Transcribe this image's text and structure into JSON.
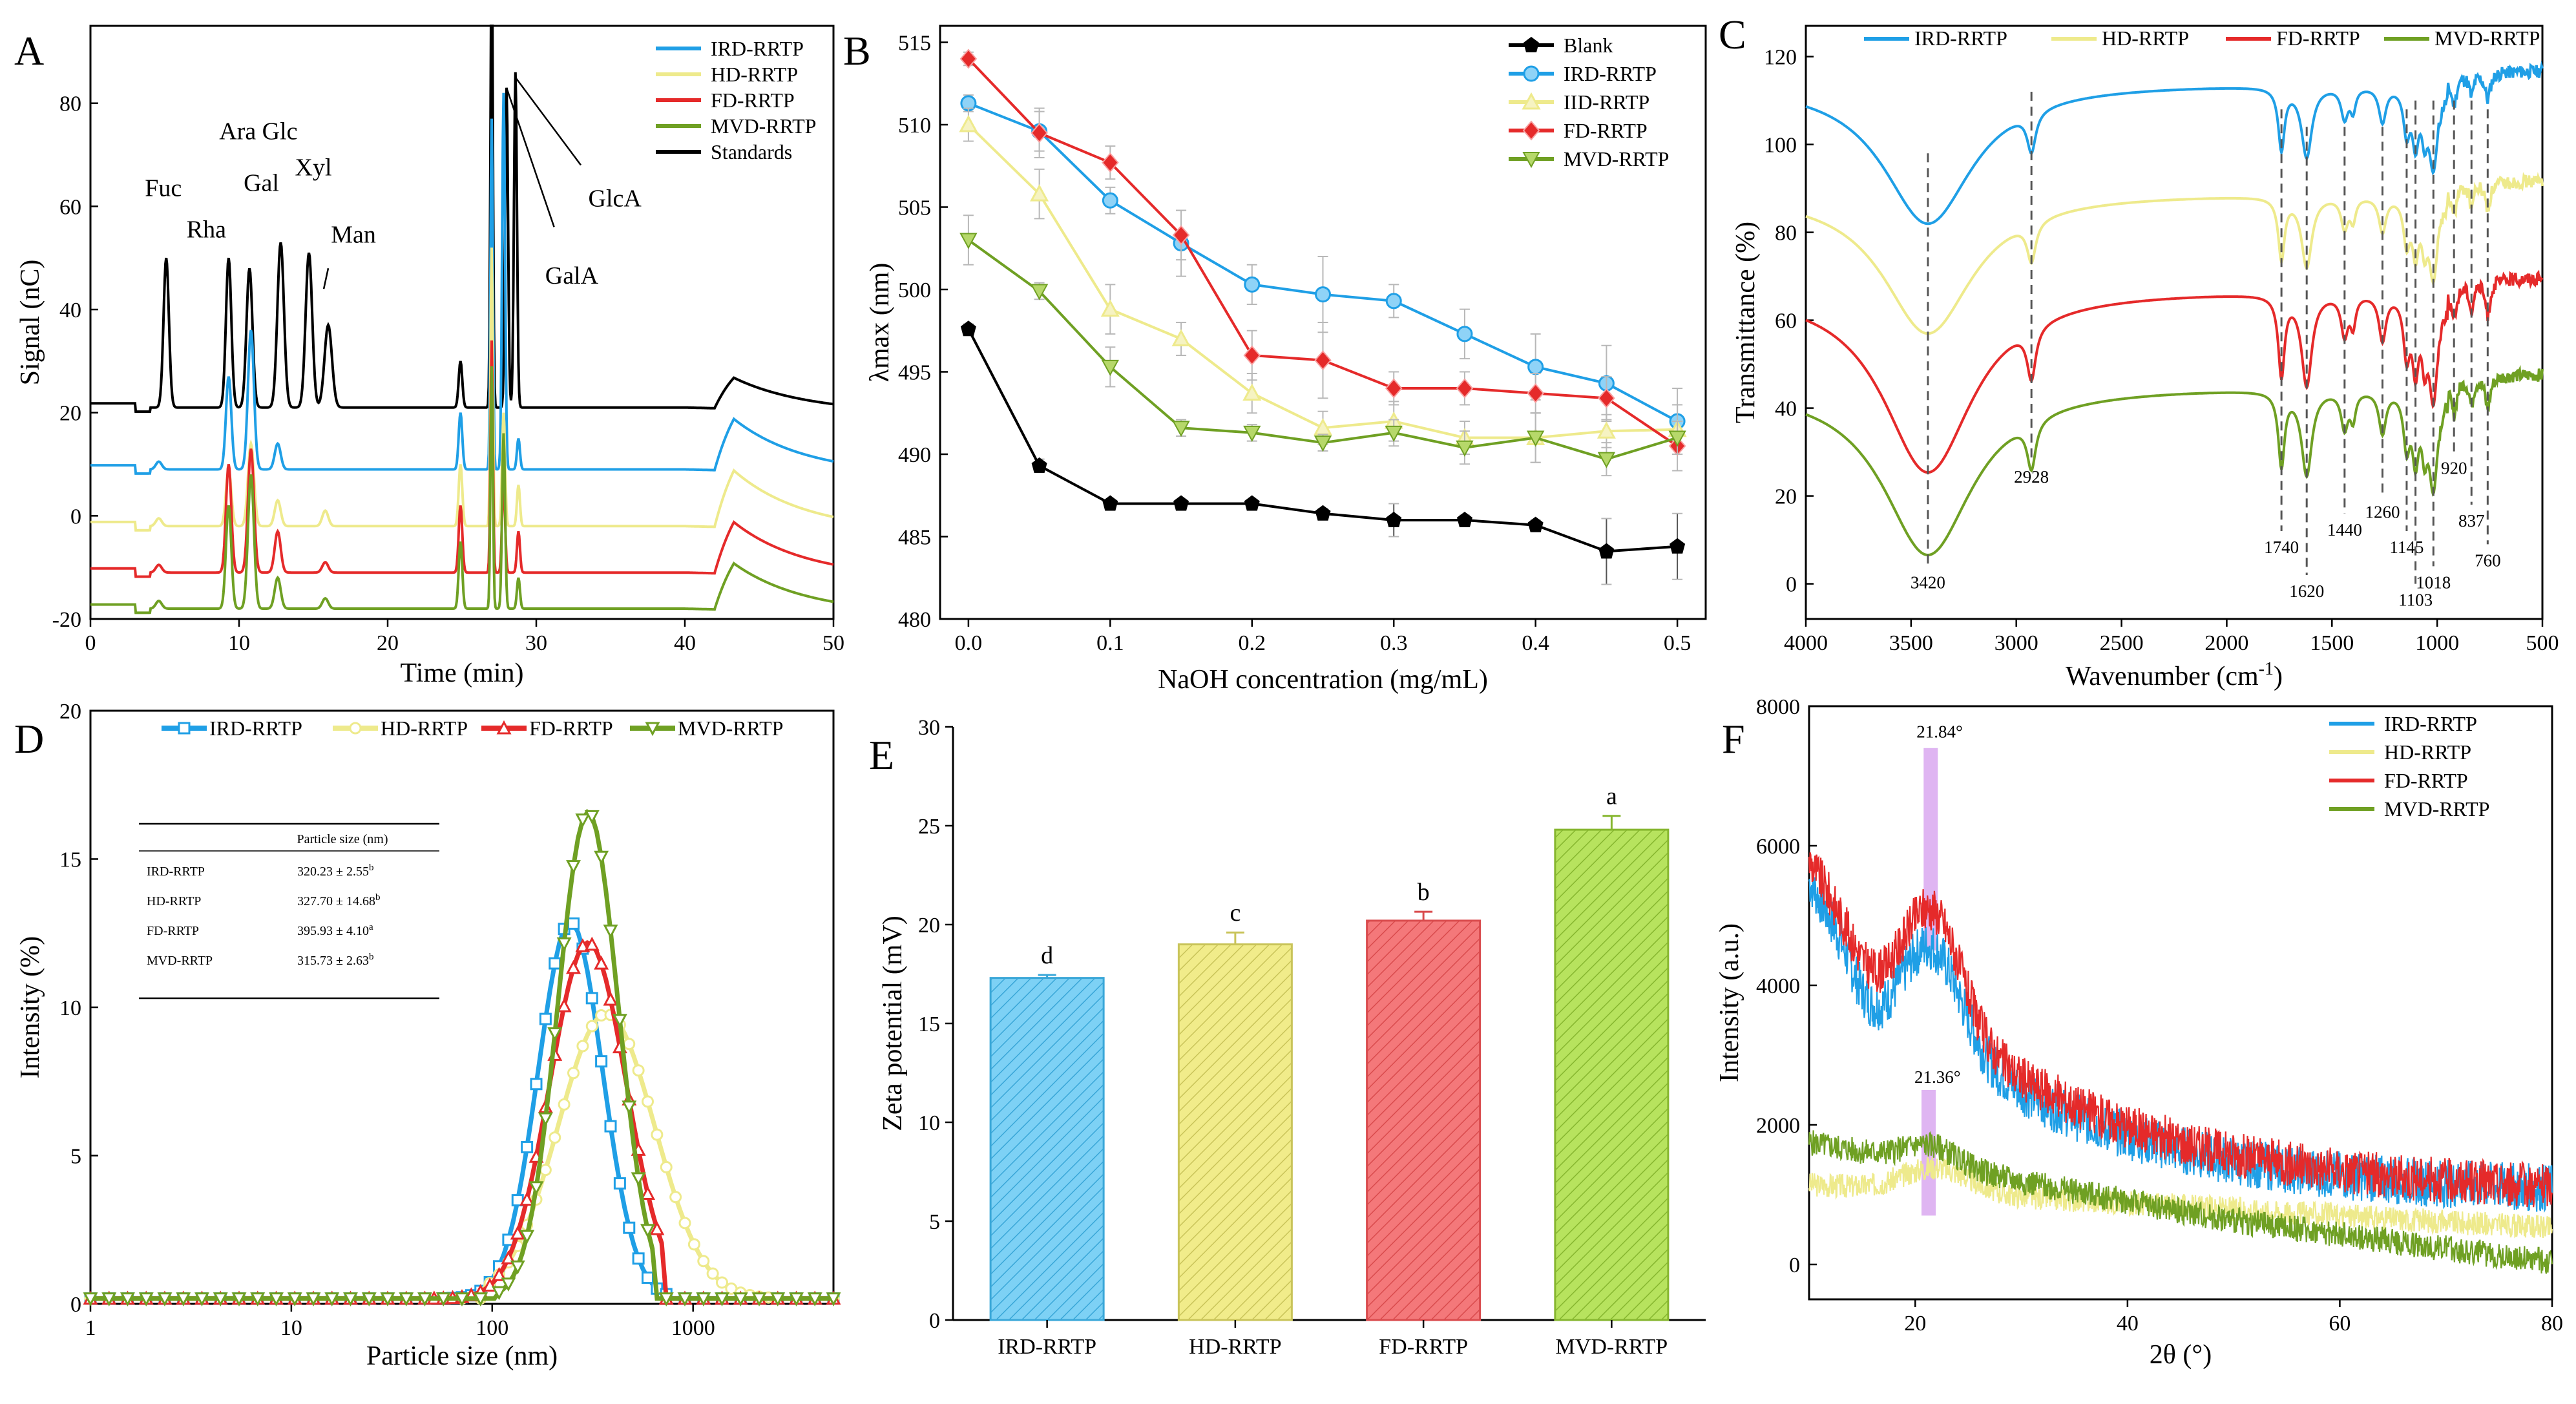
{
  "colors": {
    "IRD": "#1f9fe6",
    "HD": "#eeea8c",
    "FD": "#e52a2a",
    "MVD": "#6fa023",
    "Blank": "#000000",
    "Standards": "#000000",
    "barIRD": "#7dd1f5",
    "barHD": "#f1ec8a",
    "barFD": "#f4787a",
    "barMVD": "#b7e35e",
    "highlight": "#d9a8f0"
  },
  "chart_data": [
    {
      "id": "A",
      "type": "line",
      "panel_label": "A",
      "xlabel": "Time (min)",
      "ylabel": "Signal (nC)",
      "xlim": [
        0,
        50
      ],
      "ylim": [
        -20,
        95
      ],
      "xticks": [
        "0",
        "10",
        "20",
        "30",
        "40",
        "50"
      ],
      "yticks": [
        "-20",
        "0",
        "20",
        "40",
        "60",
        "80"
      ],
      "legend": [
        "IRD-RRTP",
        "HD-RRTP",
        "FD-RRTP",
        "MVD-RRTP",
        "Standards"
      ],
      "peaks_min": {
        "Fuc": 5.1,
        "Rha": 9.3,
        "Ara": 9.4,
        "Gal": 10.7,
        "Glc": 10.9,
        "Xyl": 12.8,
        "Man": 14.7,
        "GalA": 28.0,
        "GlcA": 28.6
      },
      "peak_labels": {
        "Fuc": "Fuc",
        "Rha": "Rha",
        "AraGlc": "Ara Glc",
        "Gal": "Gal",
        "Xyl": "Xyl",
        "Man": "Man",
        "GlcA": "GlcA",
        "GalA": "GalA"
      },
      "baselines_nC": {
        "Standards": 21,
        "IRD-RRTP": 9,
        "HD-RRTP": -2,
        "FD-RRTP": -11,
        "MVD-RRTP": -18
      }
    },
    {
      "id": "B",
      "type": "line",
      "panel_label": "B",
      "xlabel": "NaOH concentration (mg/mL)",
      "ylabel": "λmax (nm)",
      "xlim": [
        -0.02,
        0.52
      ],
      "ylim": [
        480,
        516
      ],
      "xticks": [
        "0.0",
        "0.1",
        "0.2",
        "0.3",
        "0.4",
        "0.5"
      ],
      "yticks": [
        "480",
        "485",
        "490",
        "495",
        "500",
        "505",
        "510",
        "515"
      ],
      "x": [
        0,
        0.05,
        0.1,
        0.15,
        0.2,
        0.25,
        0.3,
        0.35,
        0.4,
        0.45,
        0.5
      ],
      "series": [
        {
          "name": "Blank",
          "values": [
            497.6,
            489.3,
            487.0,
            487.0,
            487.0,
            486.4,
            486.0,
            486.0,
            485.7,
            484.1,
            484.4
          ],
          "err": [
            0.3,
            0.4,
            0.2,
            0.2,
            0.2,
            0.3,
            1.0,
            0.3,
            0.3,
            2.0,
            2.0
          ]
        },
        {
          "name": "IRD-RRTP",
          "values": [
            511.3,
            509.6,
            505.4,
            502.8,
            500.3,
            499.7,
            499.3,
            497.3,
            495.3,
            494.3,
            492.0
          ],
          "err": [
            0.5,
            1.2,
            0.8,
            2.0,
            1.2,
            2.3,
            1.0,
            1.5,
            2.0,
            2.3,
            2.0
          ]
        },
        {
          "name": "IID-RRTP",
          "values": [
            510.0,
            505.8,
            498.8,
            497.0,
            493.7,
            491.6,
            492.0,
            491.0,
            491.0,
            491.4,
            491.5
          ],
          "err": [
            1.0,
            1.5,
            1.5,
            1.0,
            1.2,
            1.0,
            1.2,
            1.0,
            1.5,
            1.0,
            1.5
          ]
        },
        {
          "name": "FD-RRTP",
          "values": [
            514.0,
            509.5,
            507.7,
            503.3,
            496.0,
            495.7,
            494.0,
            494.0,
            493.7,
            493.4,
            490.5
          ],
          "err": [
            0.4,
            1.5,
            1.0,
            1.5,
            1.5,
            2.3,
            1.0,
            1.0,
            1.2,
            1.3,
            1.5
          ]
        },
        {
          "name": "MVD-RRTP",
          "values": [
            503.0,
            499.9,
            495.3,
            491.6,
            491.3,
            490.7,
            491.3,
            490.4,
            491.0,
            489.7,
            491.0
          ],
          "err": [
            1.5,
            0.5,
            1.2,
            0.5,
            0.5,
            0.5,
            0.8,
            1.0,
            1.5,
            1.0,
            1.0
          ]
        }
      ]
    },
    {
      "id": "C",
      "type": "line",
      "panel_label": "C",
      "xlabel": "Wavenumber (cm",
      "xlabel_sup": "-1",
      "xlabel_end": ")",
      "ylabel": "Transmittance (%)",
      "xlim": [
        4000,
        500
      ],
      "ylim": [
        -8,
        127
      ],
      "xticks": [
        "4000",
        "3500",
        "3000",
        "2500",
        "2000",
        "1500",
        "1000",
        "500"
      ],
      "yticks": [
        "0",
        "20",
        "40",
        "60",
        "80",
        "100",
        "120"
      ],
      "legend": [
        "IRD-RRTP",
        "HD-RRTP",
        "FD-RRTP",
        "MVD-RRTP"
      ],
      "peak_positions": [
        "3420",
        "2928",
        "1740",
        "1620",
        "1440",
        "1260",
        "1145",
        "1103",
        "1018",
        "920",
        "837",
        "760"
      ],
      "plateau": {
        "IRD-RRTP": 114,
        "HD-RRTP": 89,
        "FD-RRTP": 67,
        "MVD-RRTP": 45
      }
    },
    {
      "id": "D",
      "type": "line",
      "panel_label": "D",
      "xlabel": "Particle size (nm)",
      "ylabel": "Intensity (%)",
      "xscale": "log",
      "xlim": [
        1,
        5000
      ],
      "ylim": [
        0,
        20
      ],
      "xticks": [
        "1",
        "10",
        "100",
        "1000"
      ],
      "yticks": [
        "0",
        "5",
        "10",
        "15",
        "20"
      ],
      "series": [
        {
          "name": "IRD-RRTP",
          "peak_nm": 245,
          "peak": 12.7
        },
        {
          "name": "HD-RRTP",
          "peak_nm": 370,
          "peak": 9.6
        },
        {
          "name": "FD-RRTP",
          "peak_nm": 300,
          "peak": 12.0
        },
        {
          "name": "MVD-RRTP",
          "peak_nm": 300,
          "peak": 16.4
        }
      ],
      "table": {
        "header": "Particle size (nm)",
        "rows": [
          {
            "label": "IRD-RRTP",
            "value": "320.23 ± 2.55",
            "sup": "b"
          },
          {
            "label": "HD-RRTP",
            "value": "327.70 ± 14.68",
            "sup": "b"
          },
          {
            "label": "FD-RRTP",
            "value": "395.93 ± 4.10",
            "sup": "a"
          },
          {
            "label": "MVD-RRTP",
            "value": "315.73 ± 2.63",
            "sup": "b"
          }
        ]
      }
    },
    {
      "id": "E",
      "type": "bar",
      "panel_label": "E",
      "xlabel": "",
      "ylabel": "Zeta potential (mV)",
      "ylim": [
        0,
        30
      ],
      "yticks": [
        "0",
        "5",
        "10",
        "15",
        "20",
        "25",
        "30"
      ],
      "categories": [
        "IRD-RRTP",
        "HD-RRTP",
        "FD-RRTP",
        "MVD-RRTP"
      ],
      "values": [
        17.3,
        19.0,
        20.2,
        24.8
      ],
      "err": [
        0.15,
        0.6,
        0.45,
        0.7
      ],
      "letters": [
        "d",
        "c",
        "b",
        "a"
      ]
    },
    {
      "id": "F",
      "type": "line",
      "panel_label": "F",
      "xlabel": "2θ (°)",
      "ylabel": "Intensity (a.u.)",
      "xlim": [
        10,
        80
      ],
      "ylim": [
        -500,
        8000
      ],
      "xticks": [
        "20",
        "40",
        "60",
        "80"
      ],
      "yticks": [
        "0",
        "2000",
        "4000",
        "6000",
        "8000"
      ],
      "legend": [
        "IRD-RRTP",
        "HD-RRTP",
        "FD-RRTP",
        "MVD-RRTP"
      ],
      "annotations": [
        {
          "text": "21.84°",
          "x": 21.84
        },
        {
          "text": "21.36°",
          "x": 21.36
        }
      ]
    }
  ]
}
